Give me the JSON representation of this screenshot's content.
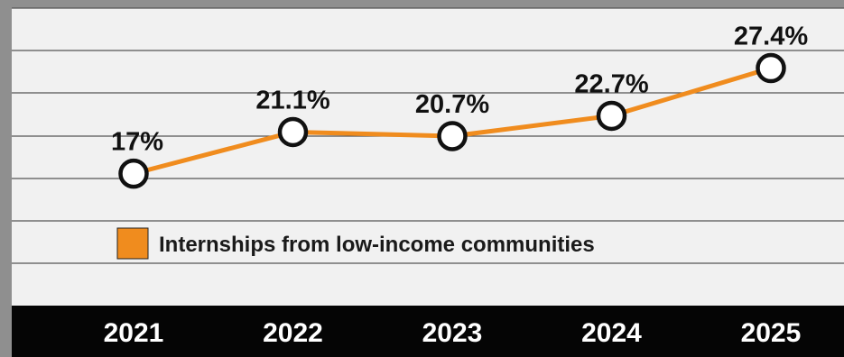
{
  "chart_data": {
    "type": "line",
    "title": "",
    "xlabel": "",
    "ylabel": "",
    "x": [
      "2021",
      "2022",
      "2023",
      "2024",
      "2025"
    ],
    "series": [
      {
        "name": "Internships from low-income communities",
        "values": [
          17,
          21.1,
          20.7,
          22.7,
          27.4
        ],
        "labels": [
          "17%",
          "21.1%",
          "20.7%",
          "22.7%",
          "27.4%"
        ]
      }
    ],
    "ylim": [
      4,
      31
    ],
    "grid": true,
    "legend_position": "bottom-left",
    "colors": {
      "line": "#f08c1e",
      "marker_fill": "#ffffff",
      "marker_stroke": "#111111",
      "panel": "#f1f1f1",
      "gridline": "#555555",
      "axis_bar": "#050505",
      "tick_text": "#ffffff",
      "label_text": "#111111"
    }
  }
}
